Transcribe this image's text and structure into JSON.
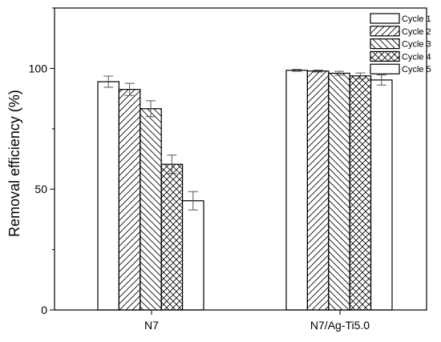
{
  "chart_data": {
    "type": "bar",
    "title": "",
    "xlabel": "",
    "ylabel": "Removal efficiency (%)",
    "ylim": [
      0,
      125
    ],
    "yticks": [
      0,
      50,
      100
    ],
    "categories": [
      "N7",
      "N7/Ag-Ti5.0"
    ],
    "series": [
      {
        "name": "Cycle 1",
        "values": [
          94.5,
          99.2
        ],
        "errors": [
          2.3,
          0.4
        ],
        "pattern": "solid"
      },
      {
        "name": "Cycle 2",
        "values": [
          91.3,
          98.9
        ],
        "errors": [
          2.5,
          0.4
        ],
        "pattern": "diag-right"
      },
      {
        "name": "Cycle 3",
        "values": [
          83.3,
          98.0
        ],
        "errors": [
          3.3,
          0.8
        ],
        "pattern": "diag-left"
      },
      {
        "name": "Cycle 4",
        "values": [
          60.3,
          96.9
        ],
        "errors": [
          3.8,
          1.2
        ],
        "pattern": "cross"
      },
      {
        "name": "Cycle 5",
        "values": [
          45.2,
          95.2
        ],
        "errors": [
          3.8,
          2.1
        ],
        "pattern": "solid"
      }
    ],
    "legend": "top-right",
    "grid": false,
    "colors": {
      "bar_fill": "#ffffff",
      "bar_edge": "#000000",
      "error_bar": "#555555"
    }
  }
}
